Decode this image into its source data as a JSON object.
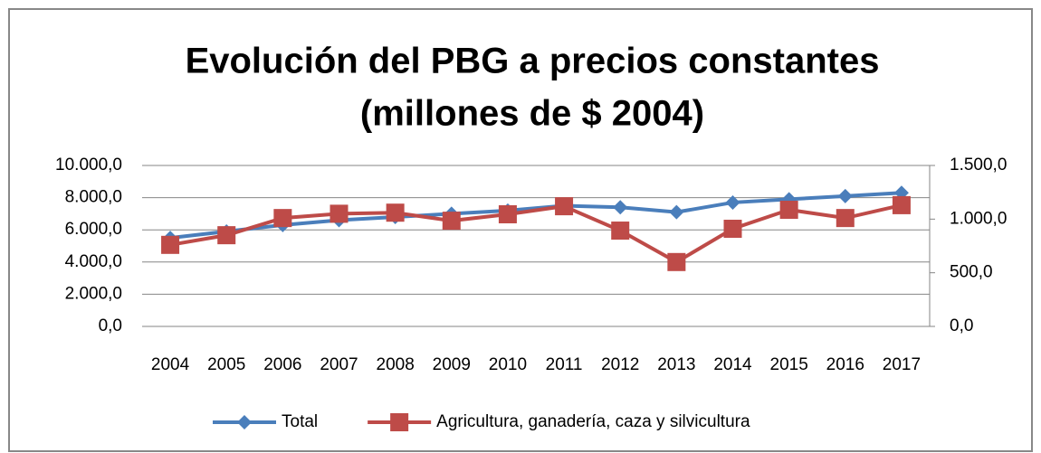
{
  "chart_data": {
    "type": "line",
    "title": [
      "Evolución del PBG a precios constantes",
      "(millones de $ 2004)"
    ],
    "categories": [
      "2004",
      "2005",
      "2006",
      "2007",
      "2008",
      "2009",
      "2010",
      "2011",
      "2012",
      "2013",
      "2014",
      "2015",
      "2016",
      "2017"
    ],
    "series": [
      {
        "name": "Total",
        "color": "#4a7ebb",
        "marker": "diamond",
        "values": [
          5500,
          5900,
          6300,
          6600,
          6800,
          7000,
          7200,
          7500,
          7400,
          7100,
          7700,
          7900,
          8100,
          8300
        ]
      },
      {
        "name": "Agricultura, ganadería, caza y silvicultura",
        "color": "#be4b48",
        "marker": "square",
        "axis": "y2",
        "values": [
          760,
          850,
          1010,
          1050,
          1060,
          985,
          1045,
          1120,
          893,
          600,
          910,
          1087,
          1010,
          1130
        ]
      }
    ],
    "ylim": [
      0,
      10000
    ],
    "yticks": [
      {
        "value": 0,
        "label": "0,0"
      },
      {
        "value": 2000,
        "label": "2.000,0"
      },
      {
        "value": 4000,
        "label": "4.000,0"
      },
      {
        "value": 6000,
        "label": "6.000,0"
      },
      {
        "value": 8000,
        "label": "8.000,0"
      },
      {
        "value": 10000,
        "label": "10.000,0"
      }
    ],
    "y2lim": [
      0,
      1500
    ],
    "y2ticks": [
      {
        "value": 0,
        "label": "0,0"
      },
      {
        "value": 500,
        "label": "500,0"
      },
      {
        "value": 1000,
        "label": "1.000,0"
      },
      {
        "value": 1500,
        "label": "1.500,0"
      }
    ],
    "grid": true,
    "legend": "bottom"
  }
}
